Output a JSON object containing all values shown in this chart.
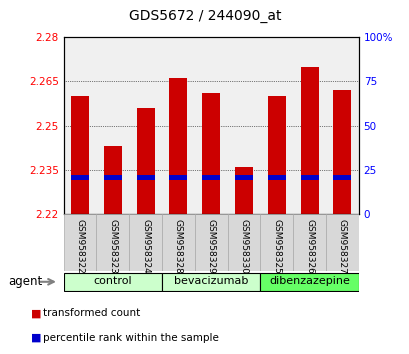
{
  "title": "GDS5672 / 244090_at",
  "samples": [
    "GSM958322",
    "GSM958323",
    "GSM958324",
    "GSM958328",
    "GSM958329",
    "GSM958330",
    "GSM958325",
    "GSM958326",
    "GSM958327"
  ],
  "transformed_counts": [
    2.26,
    2.243,
    2.256,
    2.266,
    2.261,
    2.236,
    2.26,
    2.27,
    2.262
  ],
  "percentile_values": [
    2.2325,
    2.2325,
    2.2325,
    2.2325,
    2.2325,
    2.2325,
    2.2325,
    2.2325,
    2.2325
  ],
  "ylim_left": [
    2.22,
    2.28
  ],
  "ylim_right": [
    0,
    100
  ],
  "yticks_left": [
    2.22,
    2.235,
    2.25,
    2.265,
    2.28
  ],
  "yticks_left_labels": [
    "2.22",
    "2.235",
    "2.25",
    "2.265",
    "2.28"
  ],
  "yticks_right": [
    0,
    25,
    50,
    75,
    100
  ],
  "yticks_right_labels": [
    "0",
    "25",
    "50",
    "75",
    "100%"
  ],
  "bar_color": "#cc0000",
  "percentile_color": "#0000cc",
  "bar_width": 0.55,
  "bar_bottom": 2.22,
  "group_labels": [
    "control",
    "bevacizumab",
    "dibenzazepine"
  ],
  "group_ranges": [
    [
      0,
      2
    ],
    [
      3,
      5
    ],
    [
      6,
      8
    ]
  ],
  "group_colors": [
    "#ccffcc",
    "#ccffcc",
    "#66ff66"
  ],
  "agent_label": "agent",
  "legend_items": [
    {
      "label": "transformed count",
      "color": "#cc0000"
    },
    {
      "label": "percentile rank within the sample",
      "color": "#0000cc"
    }
  ]
}
